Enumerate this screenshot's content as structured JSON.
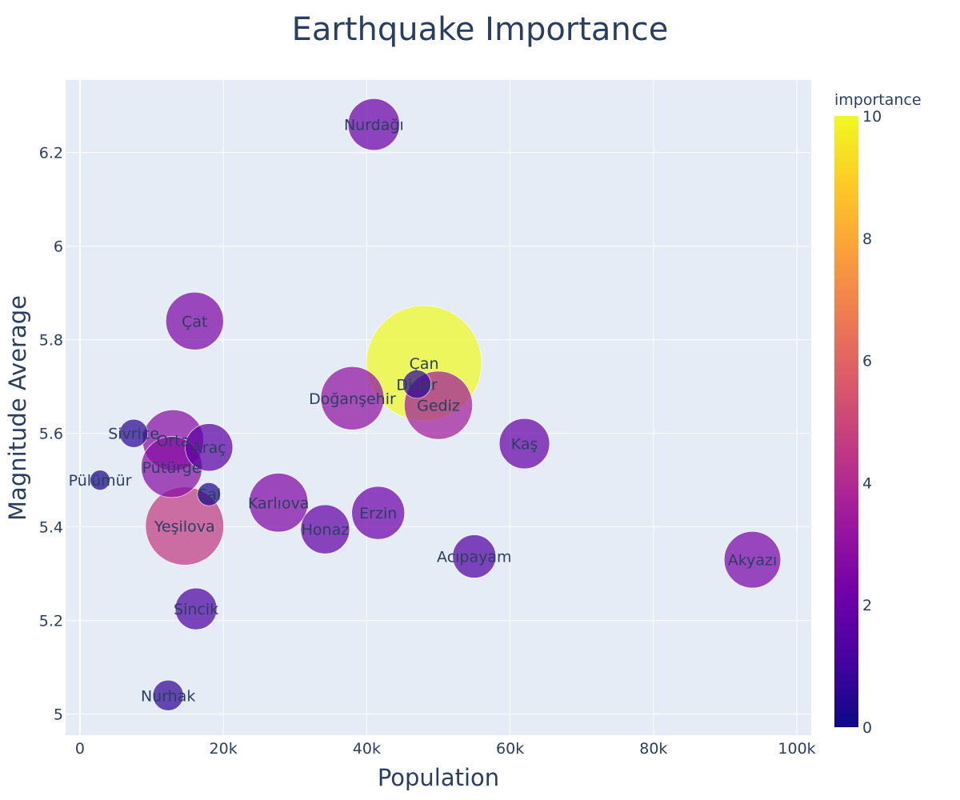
{
  "chart_data": {
    "type": "scatter",
    "title": "Earthquake Importance",
    "xlabel": "Population",
    "ylabel": "Magnitude Average",
    "xlim": [
      -2000,
      102000
    ],
    "ylim": [
      4.955,
      6.355
    ],
    "x_ticks": [
      {
        "value": 0,
        "label": "0"
      },
      {
        "value": 20000,
        "label": "20k"
      },
      {
        "value": 40000,
        "label": "40k"
      },
      {
        "value": 60000,
        "label": "60k"
      },
      {
        "value": 80000,
        "label": "80k"
      },
      {
        "value": 100000,
        "label": "100k"
      }
    ],
    "y_ticks": [
      {
        "value": 5.0,
        "label": "5"
      },
      {
        "value": 5.2,
        "label": "5.2"
      },
      {
        "value": 5.4,
        "label": "5.4"
      },
      {
        "value": 5.6,
        "label": "5.6"
      },
      {
        "value": 5.8,
        "label": "5.8"
      },
      {
        "value": 6.0,
        "label": "6"
      },
      {
        "value": 6.2,
        "label": "6.2"
      }
    ],
    "grid": true,
    "colorbar": {
      "title": "importance",
      "min": 0,
      "max": 10,
      "ticks": [
        0,
        2,
        4,
        6,
        8,
        10
      ],
      "colorscale": [
        "#0d0887",
        "#46039f",
        "#7201a8",
        "#9c179e",
        "#bd3786",
        "#d8576b",
        "#ed7953",
        "#fb9f3a",
        "#fdca26",
        "#f0f921"
      ]
    },
    "points": [
      {
        "name": "Nurdağı",
        "x": 41000,
        "y": 6.26,
        "importance": 2.0
      },
      {
        "name": "Çat",
        "x": 16000,
        "y": 5.84,
        "importance": 2.5
      },
      {
        "name": "Çan",
        "x": 48000,
        "y": 5.75,
        "importance": 10.0
      },
      {
        "name": "Dinar",
        "x": 47000,
        "y": 5.705,
        "importance": 0.6
      },
      {
        "name": "Gediz",
        "x": 50000,
        "y": 5.66,
        "importance": 3.5
      },
      {
        "name": "Doğanşehir",
        "x": 38000,
        "y": 5.675,
        "importance": 3.0
      },
      {
        "name": "Sivrice",
        "x": 7500,
        "y": 5.6,
        "importance": 0.6
      },
      {
        "name": "Orta",
        "x": 13000,
        "y": 5.585,
        "importance": 2.8
      },
      {
        "name": "Araç",
        "x": 18000,
        "y": 5.57,
        "importance": 1.7
      },
      {
        "name": "Kaş",
        "x": 62000,
        "y": 5.578,
        "importance": 1.9
      },
      {
        "name": "Pütürge",
        "x": 12800,
        "y": 5.528,
        "importance": 2.8
      },
      {
        "name": "Pülümür",
        "x": 2800,
        "y": 5.5,
        "importance": 0.3
      },
      {
        "name": "Çal",
        "x": 18000,
        "y": 5.47,
        "importance": 0.4
      },
      {
        "name": "Karlıova",
        "x": 27700,
        "y": 5.452,
        "importance": 2.6
      },
      {
        "name": "Erzin",
        "x": 41600,
        "y": 5.43,
        "importance": 2.1
      },
      {
        "name": "Honaz",
        "x": 34200,
        "y": 5.395,
        "importance": 1.8
      },
      {
        "name": "Yeşilova",
        "x": 14600,
        "y": 5.402,
        "importance": 4.6
      },
      {
        "name": "Acıpayam",
        "x": 55000,
        "y": 5.337,
        "importance": 1.4
      },
      {
        "name": "Akyazı",
        "x": 93800,
        "y": 5.33,
        "importance": 2.4
      },
      {
        "name": "Sincik",
        "x": 16200,
        "y": 5.225,
        "importance": 1.3
      },
      {
        "name": "Nurhak",
        "x": 12300,
        "y": 5.04,
        "importance": 0.7
      }
    ]
  }
}
